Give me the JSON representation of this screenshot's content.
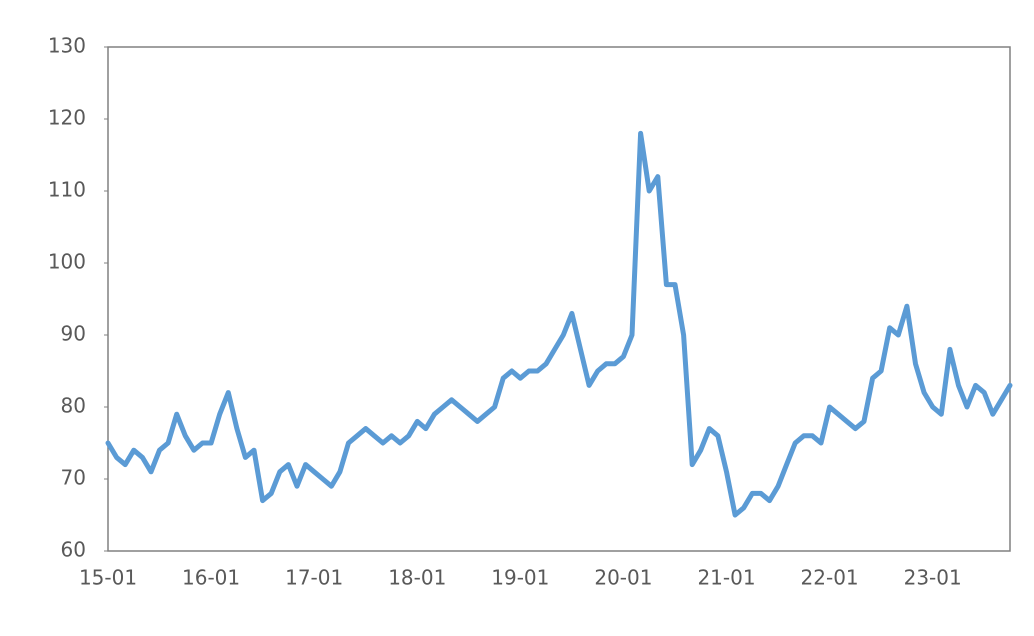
{
  "chart_data": {
    "type": "line",
    "categories": [
      "15-01",
      null,
      null,
      null,
      null,
      null,
      null,
      null,
      null,
      null,
      null,
      null,
      "16-01",
      null,
      null,
      null,
      null,
      null,
      null,
      null,
      null,
      null,
      null,
      null,
      "17-01",
      null,
      null,
      null,
      null,
      null,
      null,
      null,
      null,
      null,
      null,
      null,
      "18-01",
      null,
      null,
      null,
      null,
      null,
      null,
      null,
      null,
      null,
      null,
      null,
      "19-01",
      null,
      null,
      null,
      null,
      null,
      null,
      null,
      null,
      null,
      null,
      null,
      "20-01",
      null,
      null,
      null,
      null,
      null,
      null,
      null,
      null,
      null,
      null,
      null,
      "21-01",
      null,
      null,
      null,
      null,
      null,
      null,
      null,
      null,
      null,
      null,
      null,
      "22-01",
      null,
      null,
      null,
      null,
      null,
      null,
      null,
      null,
      null,
      null,
      null,
      "23-01",
      null,
      null,
      null,
      null,
      null,
      null,
      null,
      null,
      null
    ],
    "values": [
      75,
      73,
      72,
      74,
      73,
      71,
      74,
      75,
      79,
      76,
      74,
      75,
      75,
      79,
      82,
      77,
      73,
      74,
      67,
      68,
      71,
      72,
      69,
      72,
      71,
      70,
      69,
      71,
      75,
      76,
      77,
      76,
      75,
      76,
      75,
      76,
      78,
      77,
      79,
      80,
      81,
      80,
      79,
      78,
      79,
      80,
      84,
      85,
      84,
      85,
      85,
      86,
      88,
      90,
      93,
      88,
      83,
      85,
      86,
      86,
      87,
      90,
      118,
      110,
      112,
      97,
      97,
      90,
      72,
      74,
      77,
      76,
      71,
      65,
      66,
      68,
      68,
      67,
      69,
      72,
      75,
      76,
      76,
      75,
      80,
      79,
      78,
      77,
      78,
      84,
      85,
      91,
      90,
      94,
      86,
      82,
      80,
      79,
      88,
      83,
      80,
      83,
      82,
      79,
      81,
      83
    ],
    "color": "#5b9bd5",
    "ylim": [
      60,
      130
    ],
    "yticks": [
      60,
      70,
      80,
      90,
      100,
      110,
      120,
      130
    ]
  }
}
